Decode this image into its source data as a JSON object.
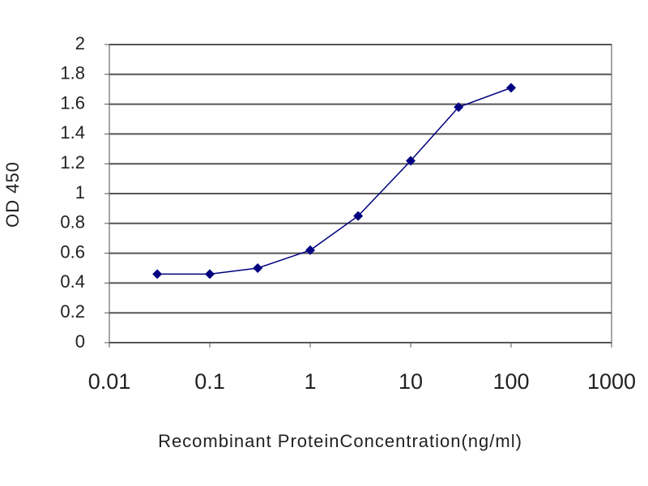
{
  "chart_data": {
    "type": "line",
    "x_label": "Recombinant ProteinConcentration(ng/ml)",
    "y_label": "OD 450",
    "x": [
      0.03,
      0.1,
      0.3,
      1,
      3,
      10,
      30,
      100
    ],
    "series": [
      {
        "color": "#000080",
        "values": [
          0.46,
          0.46,
          0.5,
          0.62,
          0.85,
          1.22,
          1.58,
          1.71
        ]
      }
    ],
    "xscale": "log",
    "xlim": [
      0.01,
      1000
    ],
    "xticks": [
      0.01,
      0.1,
      1,
      10,
      100,
      1000
    ],
    "ylim": [
      0,
      2
    ],
    "yticks": [
      0,
      0.2,
      0.4,
      0.6,
      0.8,
      1,
      1.2,
      1.4,
      1.6,
      1.8,
      2
    ],
    "grid": true
  }
}
